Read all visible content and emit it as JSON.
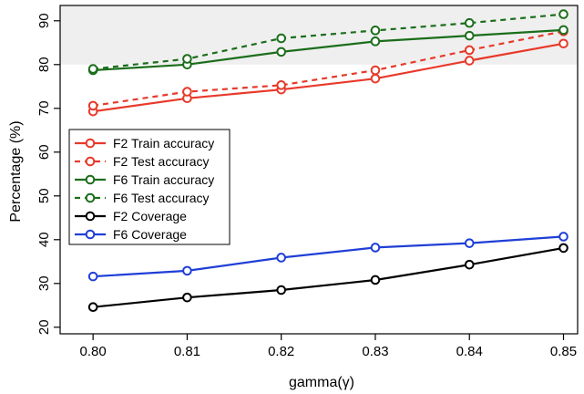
{
  "chart_data": {
    "type": "line",
    "xlabel": "gamma(γ)",
    "ylabel": "Percentage (%)",
    "x": [
      0.8,
      0.81,
      0.82,
      0.83,
      0.84,
      0.85
    ],
    "x_tick_labels": [
      "0.80",
      "0.81",
      "0.82",
      "0.83",
      "0.84",
      "0.85"
    ],
    "y_ticks": [
      20,
      30,
      40,
      50,
      60,
      70,
      80,
      90
    ],
    "y_tick_labels": [
      "20",
      "30",
      "40",
      "50",
      "60",
      "70",
      "80",
      "90"
    ],
    "xlim": [
      0.7965,
      0.8515
    ],
    "ylim": [
      18.5,
      93.5
    ],
    "shaded_band": {
      "y_from": 80,
      "y_to": 93.5,
      "color": "#efefef"
    },
    "grid": false,
    "legend_position": "middle-left",
    "series": [
      {
        "name": "F2 Train accuracy",
        "color": "#e8392a",
        "dash": "solid",
        "values": [
          69.3,
          72.3,
          74.3,
          76.8,
          80.9,
          84.8
        ]
      },
      {
        "name": "F2 Test accuracy",
        "color": "#e8392a",
        "dash": "dashed",
        "values": [
          70.6,
          73.8,
          75.3,
          78.7,
          83.3,
          87.6
        ]
      },
      {
        "name": "F6 Train accuracy",
        "color": "#1b6e1b",
        "dash": "solid",
        "values": [
          78.7,
          80.0,
          82.9,
          85.3,
          86.6,
          87.9
        ]
      },
      {
        "name": "F6 Test accuracy",
        "color": "#1b6e1b",
        "dash": "dashed",
        "values": [
          79.0,
          81.3,
          86.0,
          87.8,
          89.5,
          91.5
        ]
      },
      {
        "name": "F2 Coverage",
        "color": "#000000",
        "dash": "solid",
        "values": [
          24.6,
          26.8,
          28.5,
          30.8,
          34.3,
          38.1
        ]
      },
      {
        "name": "F6 Coverage",
        "color": "#1f3fd6",
        "dash": "solid",
        "values": [
          31.6,
          32.9,
          35.9,
          38.2,
          39.2,
          40.7
        ]
      }
    ]
  }
}
